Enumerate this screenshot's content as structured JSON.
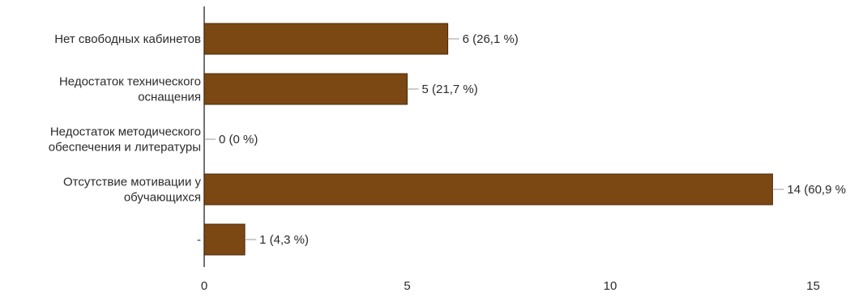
{
  "chart_data": {
    "type": "bar",
    "orientation": "horizontal",
    "categories": [
      [
        "Нет свободных кабинетов"
      ],
      [
        "Недостаток технического",
        "оснащения"
      ],
      [
        "Недостаток методического",
        "обеспечения и литературы"
      ],
      [
        "Отсутствие мотивации у",
        "обучающихся"
      ],
      [
        "-"
      ]
    ],
    "values": [
      6,
      5,
      0,
      14,
      1
    ],
    "data_labels": [
      "6 (26,1 %)",
      "5 (21,7 %)",
      "0 (0 %)",
      "14 (60,9 %",
      "1 (4,3 %)"
    ],
    "xlim": [
      0,
      15
    ],
    "x_ticks": [
      0,
      5,
      10,
      15
    ],
    "x_tick_labels": [
      "0",
      "5",
      "10",
      "15"
    ],
    "bar_color": "#7b4712",
    "grid": false,
    "legend": "none"
  }
}
